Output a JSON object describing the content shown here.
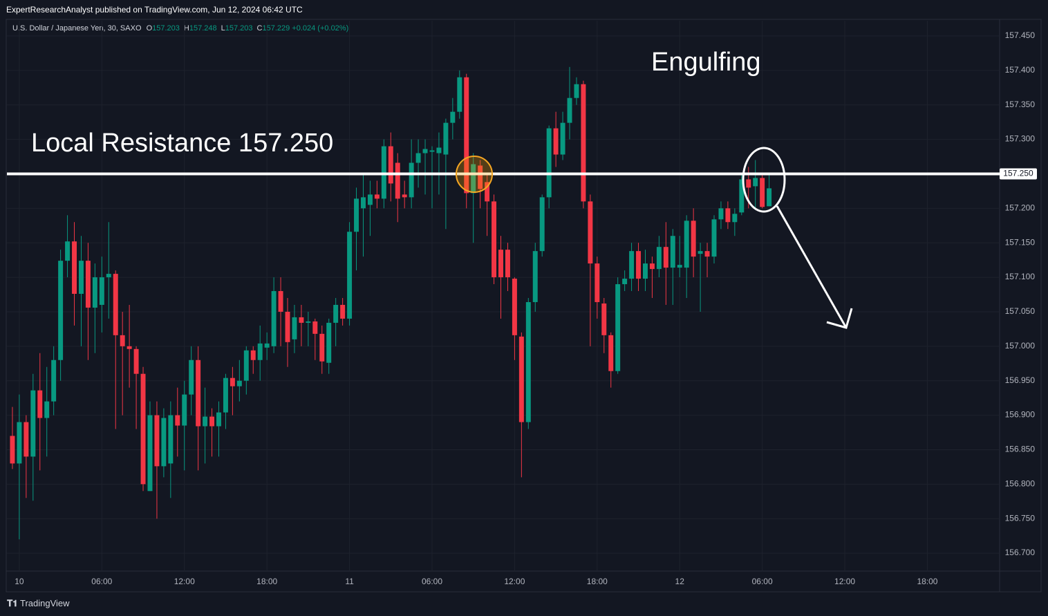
{
  "header": {
    "published": "ExpertResearchAnalyst published on TradingView.com, Jun 12, 2024 06:42 UTC",
    "symbol": "U.S. Dollar / Japanese Yen, 30, SAXO",
    "ohlc": [
      {
        "key": "O",
        "value": 157.203
      },
      {
        "key": "H",
        "value": 157.248
      },
      {
        "key": "L",
        "value": 157.203
      },
      {
        "key": "C",
        "value": 157.229
      }
    ],
    "change": "+0.024 (+0.02%)"
  },
  "footer": "TradingView",
  "chart_data": {
    "type": "candlestick",
    "up_color": "#089981",
    "down_color": "#f23645",
    "grid": true,
    "xlim": [
      -0.8,
      142.9
    ],
    "ylim": [
      156.674,
      157.472
    ],
    "xticks": [
      {
        "value": 1,
        "label": "10"
      },
      {
        "value": 13,
        "label": "06:00"
      },
      {
        "value": 25,
        "label": "12:00"
      },
      {
        "value": 37,
        "label": "18:00"
      },
      {
        "value": 49,
        "label": "11"
      },
      {
        "value": 61,
        "label": "06:00"
      },
      {
        "value": 73,
        "label": "12:00"
      },
      {
        "value": 85,
        "label": "18:00"
      },
      {
        "value": 97,
        "label": "12"
      },
      {
        "value": 109,
        "label": "06:00"
      },
      {
        "value": 121,
        "label": "12:00"
      },
      {
        "value": 133,
        "label": "18:00"
      }
    ],
    "yticks": [
      {
        "value": 156.7,
        "label": "156.700"
      },
      {
        "value": 156.75,
        "label": "156.750"
      },
      {
        "value": 156.8,
        "label": "156.800"
      },
      {
        "value": 156.85,
        "label": "156.850"
      },
      {
        "value": 156.9,
        "label": "156.900"
      },
      {
        "value": 156.95,
        "label": "156.950"
      },
      {
        "value": 157.0,
        "label": "157.000"
      },
      {
        "value": 157.05,
        "label": "157.050"
      },
      {
        "value": 157.1,
        "label": "157.100"
      },
      {
        "value": 157.15,
        "label": "157.150"
      },
      {
        "value": 157.2,
        "label": "157.200"
      },
      {
        "value": 157.25,
        "label": "157.250"
      },
      {
        "value": 157.3,
        "label": "157.300"
      },
      {
        "value": 157.35,
        "label": "157.350"
      },
      {
        "value": 157.4,
        "label": "157.400"
      },
      {
        "value": 157.45,
        "label": "157.450"
      }
    ],
    "open": [
      156.87,
      156.83,
      156.89,
      156.84,
      156.936,
      156.896,
      156.92,
      156.98,
      157.124,
      157.152,
      157.076,
      157.124,
      157.056,
      157.06,
      157.1,
      157.105,
      157.016,
      157.0,
      156.996,
      156.96,
      156.79,
      156.9,
      156.826,
      156.83,
      156.9,
      156.885,
      156.93,
      156.98,
      156.884,
      156.898,
      156.884,
      156.904,
      156.954,
      156.942,
      156.95,
      156.994,
      156.98,
      156.998,
      157.0,
      157.08,
      157.05,
      157.01,
      157.042,
      157.034,
      157.036,
      157.018,
      156.976,
      157.034,
      157.06,
      157.04,
      157.166,
      157.2,
      157.205,
      157.22,
      157.214,
      157.29,
      157.266,
      157.22,
      157.216,
      157.266,
      157.28,
      157.282,
      157.28,
      157.278,
      157.324,
      157.34,
      157.39,
      157.222,
      157.262,
      157.238,
      157.21,
      157.14,
      157.14,
      157.098,
      157.014,
      156.89,
      157.064,
      157.138,
      157.216,
      157.316,
      157.278,
      157.324,
      157.36,
      157.38,
      157.21,
      157.12,
      157.062,
      157.016,
      156.964,
      157.09,
      157.098,
      157.138,
      157.098,
      157.12,
      157.112,
      157.144,
      157.114,
      157.114,
      157.114,
      157.182,
      157.134,
      157.138,
      157.13,
      157.184,
      157.2,
      157.18,
      157.194,
      157.242,
      157.232,
      157.244,
      157.203
    ],
    "high": [
      156.912,
      156.93,
      156.9,
      156.96,
      156.99,
      156.97,
      157.0,
      157.14,
      157.19,
      157.18,
      157.16,
      157.15,
      157.12,
      157.13,
      157.18,
      157.11,
      157.05,
      157.06,
      157.0,
      156.97,
      156.92,
      156.92,
      156.91,
      156.92,
      156.94,
      156.95,
      157.0,
      157.0,
      156.94,
      156.91,
      156.92,
      156.96,
      156.97,
      156.98,
      157.0,
      157.0,
      157.03,
      157.02,
      157.1,
      157.1,
      157.07,
      157.06,
      157.06,
      157.05,
      157.04,
      157.03,
      157.04,
      157.07,
      157.07,
      157.18,
      157.23,
      157.25,
      157.24,
      157.24,
      157.3,
      157.31,
      157.28,
      157.24,
      157.3,
      157.3,
      157.3,
      157.29,
      157.31,
      157.33,
      157.36,
      157.4,
      157.395,
      157.28,
      157.27,
      157.25,
      157.22,
      157.16,
      157.15,
      157.1,
      157.02,
      157.07,
      157.15,
      157.22,
      157.32,
      157.34,
      157.34,
      157.405,
      157.39,
      157.385,
      157.22,
      157.13,
      157.07,
      157.02,
      157.1,
      157.11,
      157.15,
      157.15,
      157.14,
      157.13,
      157.16,
      157.18,
      157.17,
      157.16,
      157.19,
      157.2,
      157.15,
      157.15,
      157.19,
      157.21,
      157.21,
      157.2,
      157.25,
      157.26,
      157.27,
      157.248,
      157.248
    ],
    "low": [
      156.822,
      156.72,
      156.78,
      156.776,
      156.82,
      156.84,
      156.9,
      156.95,
      157.1,
      157.03,
      157.0,
      156.98,
      156.99,
      157.02,
      157.04,
      156.88,
      156.9,
      156.94,
      156.88,
      156.79,
      156.79,
      156.75,
      156.81,
      156.78,
      156.84,
      156.82,
      156.9,
      156.82,
      156.83,
      156.84,
      156.84,
      156.88,
      156.9,
      156.92,
      156.93,
      156.96,
      156.95,
      156.98,
      156.99,
      157.0,
      156.97,
      156.99,
      157.0,
      157.0,
      156.98,
      156.96,
      156.96,
      157.0,
      157.03,
      157.03,
      157.11,
      157.13,
      157.16,
      157.2,
      157.2,
      157.21,
      157.18,
      157.2,
      157.2,
      157.23,
      157.22,
      157.2,
      157.22,
      157.17,
      157.3,
      157.33,
      157.2,
      157.15,
      157.2,
      157.16,
      157.09,
      157.04,
      157.08,
      156.98,
      156.81,
      156.88,
      157.05,
      157.13,
      157.2,
      157.26,
      157.27,
      157.3,
      157.35,
      157.2,
      157.0,
      157.04,
      156.99,
      156.94,
      156.96,
      157.08,
      157.08,
      157.08,
      157.08,
      157.07,
      157.1,
      157.06,
      157.06,
      157.1,
      157.07,
      157.1,
      157.05,
      157.1,
      157.12,
      157.17,
      157.17,
      157.16,
      157.19,
      157.2,
      157.2,
      157.2,
      157.203
    ],
    "close": [
      156.83,
      156.89,
      156.84,
      156.936,
      156.896,
      156.92,
      156.98,
      157.124,
      157.152,
      157.076,
      157.124,
      157.056,
      157.1,
      157.1,
      157.105,
      157.016,
      157.0,
      156.996,
      156.96,
      156.8,
      156.9,
      156.826,
      156.896,
      156.9,
      156.885,
      156.93,
      156.98,
      156.884,
      156.898,
      156.884,
      156.904,
      156.954,
      156.942,
      156.95,
      156.994,
      156.98,
      157.004,
      157.004,
      157.08,
      157.05,
      157.006,
      157.042,
      157.034,
      157.036,
      157.018,
      156.978,
      157.034,
      157.06,
      157.04,
      157.166,
      157.214,
      157.216,
      157.22,
      157.214,
      157.29,
      157.236,
      157.214,
      157.216,
      157.266,
      157.28,
      157.286,
      157.284,
      157.288,
      157.324,
      157.34,
      157.39,
      157.222,
      157.264,
      157.228,
      157.21,
      157.1,
      157.1,
      157.1,
      157.016,
      156.89,
      157.064,
      157.138,
      157.216,
      157.316,
      157.278,
      157.324,
      157.36,
      157.38,
      157.21,
      157.12,
      157.064,
      157.016,
      156.964,
      157.09,
      157.098,
      157.138,
      157.098,
      157.12,
      157.112,
      157.144,
      157.114,
      157.16,
      157.118,
      157.182,
      157.13,
      157.138,
      157.13,
      157.184,
      157.2,
      157.18,
      157.192,
      157.242,
      157.23,
      157.244,
      157.202,
      157.229
    ],
    "resistance": {
      "value": 157.25,
      "value_label": "157.250",
      "text": "Local Resistance 157.250"
    },
    "annotation": "Engulfing"
  }
}
